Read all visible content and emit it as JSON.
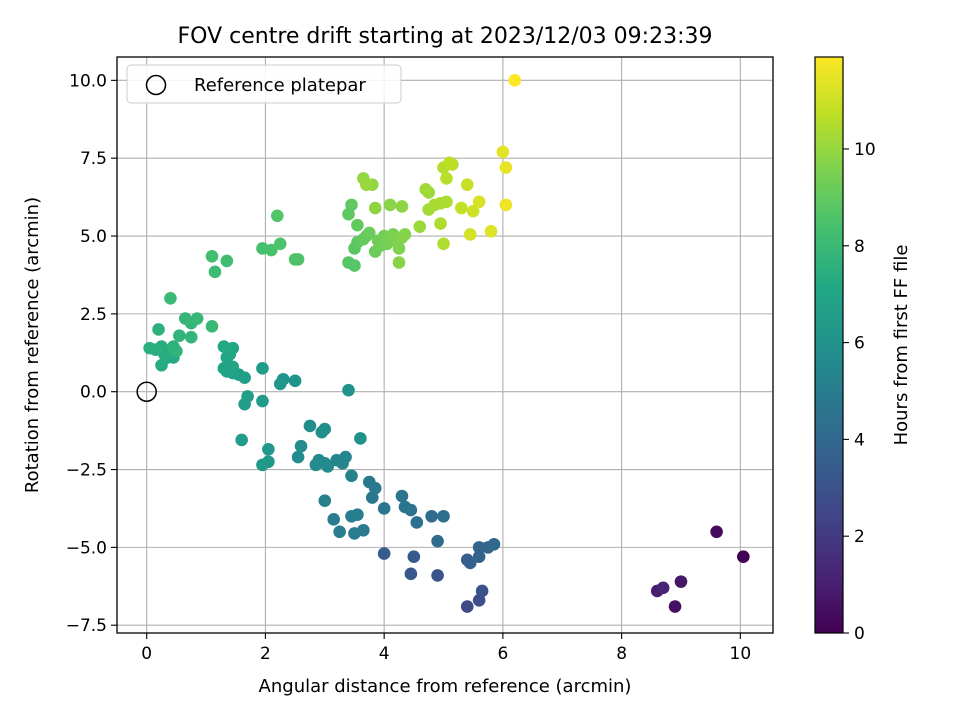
{
  "chart_data": {
    "type": "scatter",
    "title": "FOV centre drift starting at 2023/12/03 09:23:39",
    "xlabel": "Angular distance from reference (arcmin)",
    "ylabel": "Rotation from reference (arcmin)",
    "xlim": [
      -0.5,
      10.55
    ],
    "ylim": [
      -7.75,
      10.75
    ],
    "xticks": [
      0,
      2,
      4,
      6,
      8,
      10
    ],
    "yticks": [
      -7.5,
      -5.0,
      -2.5,
      0.0,
      2.5,
      5.0,
      7.5,
      10.0
    ],
    "xtick_labels": [
      "0",
      "2",
      "4",
      "6",
      "8",
      "10"
    ],
    "ytick_labels": [
      "−7.5",
      "−5.0",
      "−2.5",
      "0.0",
      "2.5",
      "5.0",
      "7.5",
      "10.0"
    ],
    "grid": true,
    "legend": {
      "position": "top-left",
      "entries": [
        "Reference platepar"
      ]
    },
    "reference_point": {
      "x": 0,
      "y": 0,
      "label": "Reference platepar"
    },
    "colorbar": {
      "label": "Hours from first FF file",
      "colormap": "viridis",
      "range": [
        0,
        11.9
      ],
      "ticks": [
        0,
        2,
        4,
        6,
        8,
        10
      ],
      "tick_labels": [
        "0",
        "2",
        "4",
        "6",
        "8",
        "10"
      ]
    },
    "points": [
      [
        10.05,
        -5.3,
        0.0
      ],
      [
        9.6,
        -4.5,
        0.3
      ],
      [
        8.9,
        -6.9,
        0.5
      ],
      [
        9.0,
        -6.1,
        0.7
      ],
      [
        8.6,
        -6.4,
        1.0
      ],
      [
        8.7,
        -6.3,
        1.2
      ],
      [
        5.4,
        -6.9,
        2.6
      ],
      [
        5.6,
        -6.7,
        2.8
      ],
      [
        5.65,
        -6.4,
        3.0
      ],
      [
        4.9,
        -5.9,
        3.1
      ],
      [
        4.45,
        -5.85,
        3.2
      ],
      [
        4.5,
        -5.3,
        3.3
      ],
      [
        4.0,
        -5.2,
        3.4
      ],
      [
        5.4,
        -5.4,
        3.5
      ],
      [
        5.45,
        -5.5,
        3.6
      ],
      [
        5.6,
        -5.3,
        3.7
      ],
      [
        5.6,
        -5.0,
        3.8
      ],
      [
        5.75,
        -5.0,
        3.9
      ],
      [
        5.85,
        -4.9,
        4.0
      ],
      [
        4.9,
        -4.8,
        4.1
      ],
      [
        4.8,
        -4.0,
        4.2
      ],
      [
        5.0,
        -4.0,
        4.3
      ],
      [
        4.55,
        -4.2,
        4.4
      ],
      [
        4.45,
        -3.8,
        4.5
      ],
      [
        4.35,
        -3.7,
        4.55
      ],
      [
        4.3,
        -3.35,
        4.6
      ],
      [
        4.0,
        -3.75,
        4.65
      ],
      [
        3.8,
        -3.4,
        4.7
      ],
      [
        3.75,
        -2.9,
        4.75
      ],
      [
        3.85,
        -3.1,
        4.8
      ],
      [
        3.65,
        -4.45,
        4.85
      ],
      [
        3.5,
        -4.55,
        4.9
      ],
      [
        3.25,
        -4.5,
        4.95
      ],
      [
        3.15,
        -4.1,
        5.0
      ],
      [
        3.45,
        -4.0,
        5.05
      ],
      [
        3.55,
        -3.95,
        5.1
      ],
      [
        3.0,
        -3.5,
        5.2
      ],
      [
        3.45,
        -2.7,
        5.3
      ],
      [
        3.3,
        -2.3,
        5.35
      ],
      [
        3.2,
        -2.2,
        5.4
      ],
      [
        3.35,
        -2.1,
        5.45
      ],
      [
        3.0,
        -2.3,
        5.5
      ],
      [
        2.9,
        -2.2,
        5.55
      ],
      [
        2.85,
        -2.35,
        5.6
      ],
      [
        3.05,
        -2.4,
        5.65
      ],
      [
        2.55,
        -2.1,
        5.7
      ],
      [
        2.6,
        -1.75,
        5.75
      ],
      [
        2.75,
        -1.1,
        5.8
      ],
      [
        2.95,
        -1.3,
        5.85
      ],
      [
        3.0,
        -1.2,
        5.9
      ],
      [
        3.6,
        -1.5,
        5.95
      ],
      [
        3.4,
        0.05,
        6.0
      ],
      [
        2.5,
        0.35,
        6.1
      ],
      [
        2.3,
        0.4,
        6.15
      ],
      [
        2.25,
        0.25,
        6.2
      ],
      [
        2.05,
        -1.85,
        6.3
      ],
      [
        2.05,
        -2.25,
        6.35
      ],
      [
        1.95,
        -2.35,
        6.4
      ],
      [
        1.95,
        -0.3,
        6.45
      ],
      [
        1.95,
        0.75,
        6.5
      ],
      [
        1.6,
        -1.55,
        6.55
      ],
      [
        1.65,
        -0.4,
        6.6
      ],
      [
        1.7,
        -0.15,
        6.65
      ],
      [
        1.65,
        0.45,
        6.7
      ],
      [
        1.55,
        0.55,
        6.75
      ],
      [
        1.45,
        0.6,
        6.8
      ],
      [
        1.35,
        0.65,
        6.85
      ],
      [
        1.3,
        0.75,
        6.9
      ],
      [
        1.45,
        0.8,
        6.95
      ],
      [
        1.35,
        1.1,
        7.0
      ],
      [
        1.4,
        1.2,
        7.05
      ],
      [
        1.45,
        1.4,
        7.1
      ],
      [
        1.3,
        1.45,
        7.15
      ],
      [
        0.35,
        1.1,
        7.2
      ],
      [
        0.45,
        1.1,
        7.25
      ],
      [
        0.25,
        0.85,
        7.3
      ],
      [
        0.3,
        1.2,
        7.35
      ],
      [
        0.25,
        1.45,
        7.4
      ],
      [
        0.15,
        1.35,
        7.45
      ],
      [
        0.05,
        1.4,
        7.5
      ],
      [
        0.2,
        2.0,
        7.55
      ],
      [
        0.45,
        1.45,
        7.6
      ],
      [
        0.5,
        1.3,
        7.65
      ],
      [
        0.55,
        1.8,
        7.7
      ],
      [
        0.75,
        1.75,
        7.75
      ],
      [
        0.65,
        2.35,
        7.8
      ],
      [
        0.75,
        2.2,
        7.85
      ],
      [
        0.85,
        2.35,
        7.9
      ],
      [
        1.1,
        2.1,
        7.95
      ],
      [
        0.4,
        3.0,
        8.0
      ],
      [
        1.15,
        3.85,
        8.1
      ],
      [
        1.35,
        4.2,
        8.2
      ],
      [
        1.1,
        4.35,
        8.3
      ],
      [
        1.95,
        4.6,
        8.4
      ],
      [
        2.1,
        4.55,
        8.45
      ],
      [
        2.25,
        4.75,
        8.5
      ],
      [
        2.5,
        4.25,
        8.55
      ],
      [
        2.55,
        4.25,
        8.6
      ],
      [
        2.2,
        5.65,
        8.65
      ],
      [
        3.4,
        4.15,
        8.7
      ],
      [
        3.5,
        4.05,
        8.75
      ],
      [
        3.5,
        4.6,
        8.8
      ],
      [
        3.55,
        4.8,
        8.85
      ],
      [
        3.4,
        5.7,
        8.9
      ],
      [
        3.45,
        6.0,
        8.95
      ],
      [
        3.55,
        5.35,
        9.0
      ],
      [
        3.65,
        4.9,
        9.05
      ],
      [
        3.7,
        5.0,
        9.1
      ],
      [
        3.75,
        5.1,
        9.15
      ],
      [
        3.85,
        4.5,
        9.2
      ],
      [
        3.9,
        4.85,
        9.25
      ],
      [
        3.95,
        4.7,
        9.3
      ],
      [
        4.0,
        5.0,
        9.35
      ],
      [
        4.05,
        4.75,
        9.4
      ],
      [
        4.1,
        4.95,
        9.45
      ],
      [
        4.15,
        5.05,
        9.5
      ],
      [
        4.2,
        4.85,
        9.55
      ],
      [
        4.25,
        4.6,
        9.6
      ],
      [
        4.3,
        4.95,
        9.65
      ],
      [
        4.35,
        5.05,
        9.7
      ],
      [
        4.25,
        4.15,
        9.75
      ],
      [
        4.1,
        6.0,
        9.8
      ],
      [
        4.3,
        5.95,
        9.85
      ],
      [
        3.85,
        5.9,
        9.9
      ],
      [
        3.8,
        6.65,
        9.95
      ],
      [
        3.65,
        6.85,
        10.0
      ],
      [
        3.7,
        6.65,
        10.05
      ],
      [
        4.6,
        5.3,
        10.1
      ],
      [
        4.75,
        6.4,
        10.15
      ],
      [
        4.7,
        6.5,
        10.2
      ],
      [
        4.75,
        5.85,
        10.25
      ],
      [
        4.85,
        6.0,
        10.3
      ],
      [
        4.95,
        6.05,
        10.35
      ],
      [
        5.05,
        6.1,
        10.4
      ],
      [
        4.95,
        5.4,
        10.45
      ],
      [
        5.0,
        4.75,
        10.5
      ],
      [
        5.0,
        7.2,
        10.55
      ],
      [
        5.05,
        6.85,
        10.6
      ],
      [
        5.15,
        7.3,
        10.65
      ],
      [
        5.1,
        7.35,
        10.7
      ],
      [
        5.3,
        5.9,
        10.8
      ],
      [
        5.4,
        6.65,
        10.9
      ],
      [
        5.5,
        5.8,
        11.0
      ],
      [
        5.45,
        5.05,
        11.1
      ],
      [
        5.6,
        6.1,
        11.2
      ],
      [
        5.8,
        5.15,
        11.3
      ],
      [
        6.0,
        7.7,
        11.4
      ],
      [
        6.05,
        7.2,
        11.5
      ],
      [
        6.05,
        6.0,
        11.6
      ],
      [
        6.2,
        10.0,
        11.9
      ]
    ]
  }
}
